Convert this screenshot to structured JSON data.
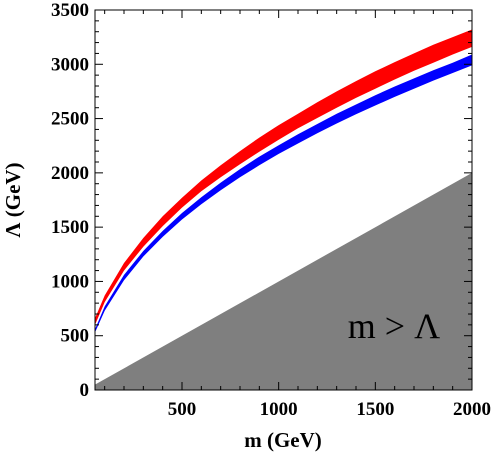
{
  "chart_data": {
    "type": "area",
    "xlabel": "m (GeV)",
    "ylabel": "Λ (GeV)",
    "xlim": [
      50,
      2000
    ],
    "ylim": [
      0,
      3500
    ],
    "xticks": [
      500,
      1000,
      1500,
      2000
    ],
    "yticks": [
      0,
      500,
      1000,
      1500,
      2000,
      2500,
      3000,
      3500
    ],
    "grid": false,
    "colors": {
      "band_red": "#ff0000",
      "band_blue": "#0000ff",
      "excluded_region": "#7f7f7f"
    },
    "bands": [
      {
        "color": "red",
        "x": [
          50,
          100,
          200,
          300,
          400,
          500,
          600,
          700,
          800,
          900,
          1000,
          1100,
          1200,
          1300,
          1400,
          1500,
          1600,
          1700,
          1800,
          1900,
          2000
        ],
        "lower": [
          600,
          810,
          1100,
          1320,
          1510,
          1680,
          1830,
          1960,
          2080,
          2195,
          2305,
          2410,
          2505,
          2600,
          2690,
          2775,
          2860,
          2940,
          3015,
          3090,
          3160
        ],
        "upper": [
          660,
          870,
          1170,
          1400,
          1600,
          1770,
          1930,
          2070,
          2200,
          2325,
          2440,
          2545,
          2650,
          2750,
          2845,
          2935,
          3020,
          3100,
          3180,
          3250,
          3320
        ]
      },
      {
        "color": "blue",
        "x": [
          50,
          100,
          200,
          300,
          400,
          500,
          600,
          700,
          800,
          900,
          1000,
          1100,
          1200,
          1300,
          1400,
          1500,
          1600,
          1700,
          1800,
          1900,
          2000
        ],
        "lower": [
          530,
          730,
          1010,
          1230,
          1410,
          1570,
          1710,
          1840,
          1960,
          2070,
          2175,
          2270,
          2365,
          2455,
          2540,
          2620,
          2700,
          2775,
          2850,
          2920,
          2990
        ],
        "upper": [
          560,
          770,
          1060,
          1280,
          1465,
          1630,
          1775,
          1910,
          2035,
          2150,
          2255,
          2355,
          2450,
          2545,
          2630,
          2715,
          2795,
          2870,
          2945,
          3015,
          3090
        ]
      }
    ],
    "excluded_region": {
      "label": "m > Λ",
      "polygon": [
        [
          50,
          0
        ],
        [
          2000,
          0
        ],
        [
          2000,
          2000
        ],
        [
          50,
          50
        ]
      ]
    }
  }
}
